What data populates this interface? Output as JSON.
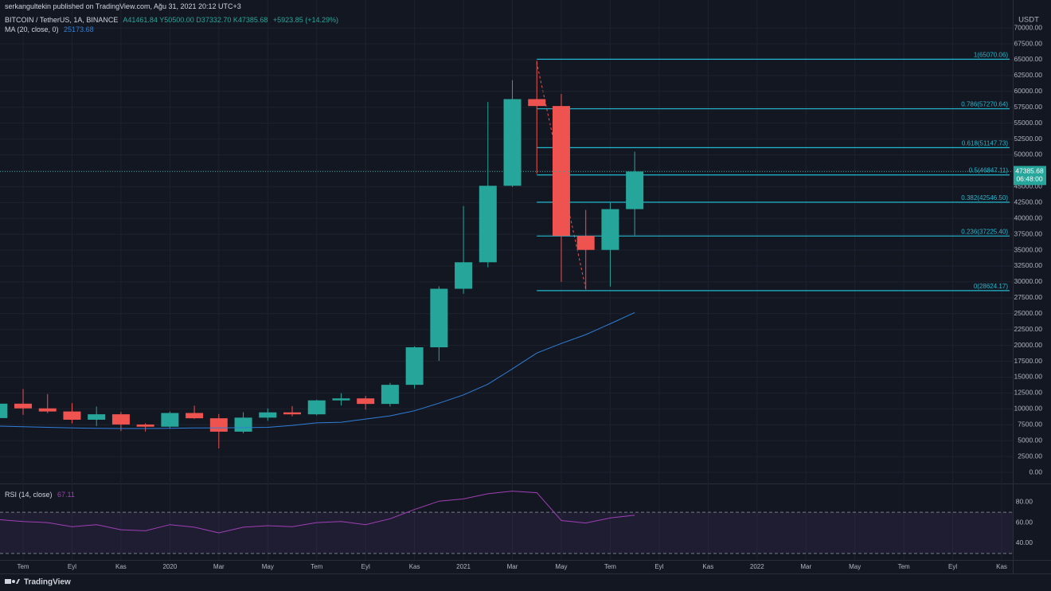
{
  "header": {
    "publisher": "serkangultekin published on TradingView.com, Ağu 31, 2021 20:12 UTC+3",
    "ohlc": "A41461.84 Y50500.00 D37332.70 K47385.68",
    "change": "+5923.85 (+14.29%)",
    "currency": "USDT",
    "countdown": "06:48:00",
    "brand": "TradingView"
  },
  "chart_data": [
    {
      "type": "candlestick",
      "title": "BITCOIN / TetherUS, 1A, BINANCE",
      "categories": [
        null,
        "Tem",
        null,
        "Eyl",
        null,
        "Kas",
        null,
        "2020",
        null,
        "Mar",
        null,
        "May",
        null,
        "Tem",
        null,
        "Eyl",
        null,
        "Kas",
        null,
        "2021",
        null,
        "Mar",
        null,
        "May",
        null,
        "Tem",
        null,
        "Eyl",
        null,
        "Kas",
        null,
        "2022",
        null,
        "Mar",
        null,
        "May",
        null,
        "Tem",
        null,
        "Eyl",
        null,
        "Kas"
      ],
      "open": [
        8550,
        10820,
        10080,
        9590,
        8290,
        9150,
        7540,
        7190,
        9350,
        8520,
        6410,
        8620,
        9450,
        9140,
        11340,
        11650,
        10780,
        13790,
        19700,
        28920,
        33090,
        45140,
        58790,
        57700,
        37250,
        35040,
        41461.84,
        null,
        null,
        null,
        null,
        null,
        null,
        null,
        null,
        null,
        null,
        null,
        null,
        null,
        null,
        null
      ],
      "high": [
        13880,
        13130,
        12330,
        10900,
        10370,
        9510,
        7740,
        9580,
        10500,
        9190,
        9470,
        10070,
        10430,
        11440,
        12470,
        12050,
        14100,
        19860,
        29300,
        41950,
        58350,
        61780,
        64850,
        59590,
        41330,
        42450,
        50500,
        null,
        null,
        null,
        null,
        null,
        null,
        null,
        null,
        null,
        null,
        null,
        null,
        null,
        null,
        null
      ],
      "low": [
        7440,
        9060,
        9320,
        7710,
        7300,
        6510,
        6440,
        6870,
        8450,
        3780,
        6150,
        8120,
        8830,
        8980,
        10520,
        9880,
        10370,
        13200,
        17570,
        28130,
        32300,
        44950,
        47040,
        30000,
        28800,
        29280,
        37332.7,
        null,
        null,
        null,
        null,
        null,
        null,
        null,
        null,
        null,
        null,
        null,
        null,
        null,
        null,
        null
      ],
      "close": [
        10820,
        10080,
        9590,
        8290,
        9150,
        7540,
        7190,
        9350,
        8520,
        6410,
        8620,
        9450,
        9140,
        11340,
        11650,
        10780,
        13790,
        19700,
        28920,
        33090,
        45140,
        58790,
        57700,
        37250,
        35040,
        41460,
        47385.68,
        null,
        null,
        null,
        null,
        null,
        null,
        null,
        null,
        null,
        null,
        null,
        null,
        null,
        null,
        null
      ],
      "up_color": "#26a69a",
      "down_color": "#ef5350",
      "series": [
        {
          "name": "MA (20, close, 0)",
          "color": "#2f7fd8",
          "values": [
            7300,
            7200,
            7100,
            7000,
            6950,
            6900,
            6900,
            6950,
            7000,
            7000,
            7050,
            7100,
            7400,
            7800,
            7900,
            8400,
            8900,
            9700,
            10900,
            12200,
            13900,
            16300,
            18800,
            20300,
            21700,
            23400,
            25173.68,
            null,
            null,
            null,
            null,
            null,
            null,
            null,
            null,
            null,
            null,
            null,
            null,
            null,
            null,
            null
          ]
        }
      ],
      "fib_color": "#22b8cf",
      "fib_levels": [
        {
          "label": "1(65070.06)",
          "value": 65070.06
        },
        {
          "label": "0.786(57270.64)",
          "value": 57270.64
        },
        {
          "label": "0.618(51147.73)",
          "value": 51147.73
        },
        {
          "label": "0.5(46847.11)",
          "value": 46847.11
        },
        {
          "label": "0.382(42546.50)",
          "value": 42546.5
        },
        {
          "label": "0.236(37225.40)",
          "value": 37225.4
        },
        {
          "label": "0(28624.17)",
          "value": 28624.17
        }
      ],
      "ylim": [
        -1750,
        74400
      ],
      "yticks": [
        {
          "value": 0,
          "label": "0.00"
        },
        {
          "value": 2500,
          "label": "2500.00"
        },
        {
          "value": 5000,
          "label": "5000.00"
        },
        {
          "value": 7500,
          "label": "7500.00"
        },
        {
          "value": 10000,
          "label": "10000.00"
        },
        {
          "value": 12500,
          "label": "12500.00"
        },
        {
          "value": 15000,
          "label": "15000.00"
        },
        {
          "value": 17500,
          "label": "17500.00"
        },
        {
          "value": 20000,
          "label": "20000.00"
        },
        {
          "value": 22500,
          "label": "22500.00"
        },
        {
          "value": 25000,
          "label": "25000.00"
        },
        {
          "value": 27500,
          "label": "27500.00"
        },
        {
          "value": 30000,
          "label": "30000.00"
        },
        {
          "value": 32500,
          "label": "32500.00"
        },
        {
          "value": 35000,
          "label": "35000.00"
        },
        {
          "value": 37500,
          "label": "37500.00"
        },
        {
          "value": 40000,
          "label": "40000.00"
        },
        {
          "value": 42500,
          "label": "42500.00"
        },
        {
          "value": 45000,
          "label": "45000.00"
        },
        {
          "value": 47500,
          "label": "47500.00"
        },
        {
          "value": 50000,
          "label": "50000.00"
        },
        {
          "value": 52500,
          "label": "52500.00"
        },
        {
          "value": 55000,
          "label": "55000.00"
        },
        {
          "value": 57500,
          "label": "57500.00"
        },
        {
          "value": 60000,
          "label": "60000.00"
        },
        {
          "value": 62500,
          "label": "62500.00"
        },
        {
          "value": 65000,
          "label": "65000.00"
        },
        {
          "value": 67500,
          "label": "67500.00"
        },
        {
          "value": 70000,
          "label": "70000.00"
        }
      ],
      "grid": true
    },
    {
      "type": "line",
      "title": "RSI (14, close)",
      "color": "#a13fb5",
      "values": [
        62.9,
        61,
        60,
        56,
        58,
        53,
        52,
        58,
        55.5,
        50,
        55.5,
        57,
        56,
        60,
        61,
        58,
        63.7,
        72.7,
        80.8,
        83,
        88,
        90.6,
        89,
        62,
        59.6,
        64.5,
        67.11,
        null,
        null,
        null,
        null,
        null,
        null,
        null,
        null,
        null,
        null,
        null,
        null,
        null,
        null,
        null
      ],
      "bands": [
        30,
        70
      ],
      "ylim": [
        23.7,
        98
      ],
      "yticks": [
        {
          "value": 40,
          "label": "40.00"
        },
        {
          "value": 60,
          "label": "60.00"
        },
        {
          "value": 80,
          "label": "80.00"
        }
      ]
    }
  ]
}
